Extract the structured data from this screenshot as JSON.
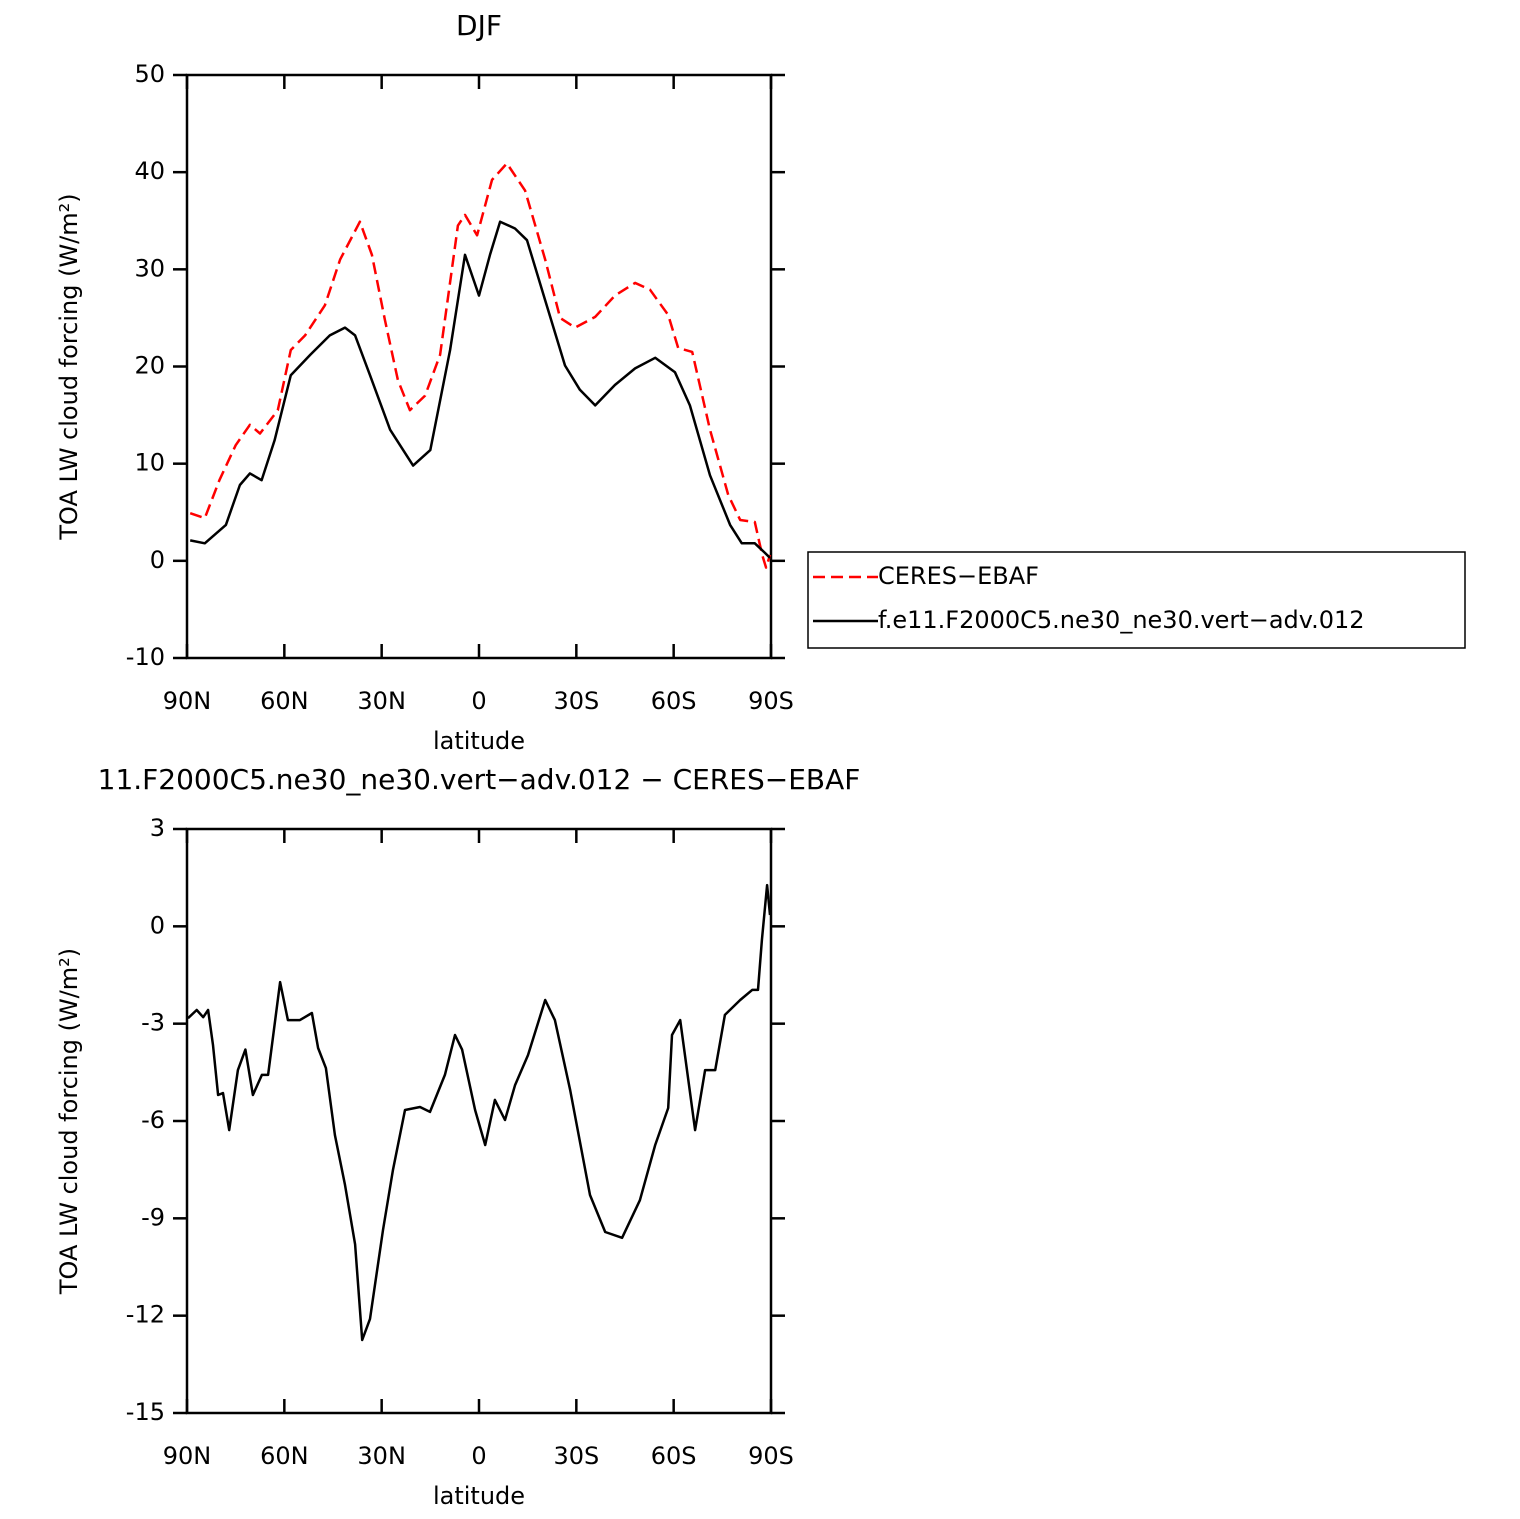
{
  "chart_data": [
    {
      "type": "line",
      "title": "DJF",
      "x_label": "latitude",
      "y_label": "TOA LW cloud forcing (W/m²)",
      "xlim": [
        90,
        -90
      ],
      "ylim": [
        -10,
        50
      ],
      "xticks": [
        {
          "value": 90,
          "label": "90N"
        },
        {
          "value": 60,
          "label": "60N"
        },
        {
          "value": 30,
          "label": "30N"
        },
        0,
        {
          "value": -30,
          "label": "30S"
        },
        {
          "value": -60,
          "label": "60S"
        },
        {
          "value": -90,
          "label": "90S"
        }
      ],
      "yticks": [
        -10,
        0,
        10,
        20,
        30,
        40,
        50
      ],
      "legend": "right",
      "series": [
        {
          "name": "CERES−EBAF",
          "color": "#ff0000",
          "dash": true,
          "x": [
            89,
            84.5,
            80,
            75,
            70.6,
            67.5,
            62,
            58,
            53.6,
            47.5,
            42.8,
            36.7,
            33,
            29,
            25,
            21.3,
            16.6,
            12,
            6.5,
            4.3,
            0.6,
            -4,
            -8.6,
            -14.2,
            -20.4,
            -25,
            -29.6,
            -35.8,
            -41.9,
            -48.1,
            -52.7,
            -58.3,
            -61.4,
            -65.7,
            -71.2,
            -76.8,
            -80.5,
            -85,
            -87.3,
            -88.5,
            -89.7
          ],
          "values": [
            4.9,
            4.4,
            8.3,
            11.9,
            14,
            13.1,
            15.5,
            21.7,
            23.2,
            26.3,
            31,
            34.9,
            31.5,
            24.8,
            18.6,
            15.5,
            17,
            21.2,
            34.5,
            35.6,
            33.5,
            39.2,
            40.9,
            38.1,
            31,
            25,
            24,
            25.1,
            27.3,
            28.6,
            27.9,
            25.3,
            21.9,
            21.5,
            13.5,
            6.8,
            4.2,
            4,
            0.6,
            -0.7,
            0.6
          ]
        },
        {
          "name": "f.e11.F2000C5.ne30_ne30.vert−adv.012",
          "color": "#000000",
          "dash": false,
          "x": [
            89,
            84.5,
            78,
            73.7,
            70.6,
            67,
            63,
            58,
            52,
            46,
            41.3,
            38.2,
            33.6,
            27.4,
            20.3,
            15,
            8.9,
            4.3,
            0,
            -3.4,
            -6.5,
            -11.1,
            -14.8,
            -20.4,
            -26.5,
            -31.1,
            -35.8,
            -41.9,
            -48.1,
            -54.3,
            -60.4,
            -65,
            -71.2,
            -77.4,
            -81,
            -85,
            -88.2,
            -89.7
          ],
          "values": [
            2.1,
            1.8,
            3.7,
            7.8,
            9,
            8.3,
            12.4,
            19.1,
            21.2,
            23.2,
            24,
            23.2,
            19.1,
            13.5,
            9.8,
            11.4,
            21.7,
            31.5,
            27.3,
            31.5,
            34.9,
            34.2,
            33,
            26.8,
            20.1,
            17.6,
            16,
            18.1,
            19.8,
            20.9,
            19.4,
            16,
            8.8,
            3.7,
            1.8,
            1.8,
            0.8,
            0.3
          ]
        }
      ]
    },
    {
      "type": "line",
      "title": "11.F2000C5.ne30_ne30.vert−adv.012 − CERES−EBAF",
      "x_label": "latitude",
      "y_label": "TOA LW cloud forcing (W/m²)",
      "xlim": [
        90,
        -90
      ],
      "ylim": [
        -15,
        3
      ],
      "xticks": [
        {
          "value": 90,
          "label": "90N"
        },
        {
          "value": 60,
          "label": "60N"
        },
        {
          "value": 30,
          "label": "30N"
        },
        0,
        {
          "value": -30,
          "label": "30S"
        },
        {
          "value": -60,
          "label": "60S"
        },
        {
          "value": -90,
          "label": "90S"
        }
      ],
      "yticks": [
        -15,
        -12,
        -9,
        -6,
        -3,
        0,
        3
      ],
      "color": "#000000",
      "x": [
        89.7,
        87,
        85,
        83.5,
        82,
        80.4,
        78.9,
        77,
        74.3,
        72,
        69.7,
        66.9,
        65,
        61.3,
        58.9,
        55.2,
        51.5,
        49.6,
        47.2,
        44.4,
        41.3,
        38.2,
        36,
        33.6,
        29.6,
        26.5,
        22.8,
        18.2,
        15.1,
        10.5,
        7.4,
        5.2,
        1.2,
        -1.9,
        -4.9,
        -8,
        -11.1,
        -15.1,
        -20.4,
        -23.4,
        -28.1,
        -34.2,
        -38.9,
        -44.1,
        -49.6,
        -54.3,
        -58.3,
        -59.5,
        -62,
        -66.6,
        -69.7,
        -72.8,
        -75.8,
        -80.5,
        -84.2,
        -86,
        -87.2,
        -88.8,
        -89.7
      ],
      "values": [
        -2.83,
        -2.58,
        -2.8,
        -2.58,
        -3.66,
        -5.2,
        -5.14,
        -6.28,
        -4.43,
        -3.8,
        -5.2,
        -4.58,
        -4.58,
        -1.72,
        -2.89,
        -2.89,
        -2.67,
        -3.75,
        -4.37,
        -6.43,
        -7.97,
        -9.8,
        -12.75,
        -12.1,
        -9.36,
        -7.5,
        -5.66,
        -5.57,
        -5.72,
        -4.58,
        -3.35,
        -3.8,
        -5.66,
        -6.74,
        -5.35,
        -5.97,
        -4.9,
        -3.97,
        -2.27,
        -2.89,
        -5.05,
        -8.28,
        -9.42,
        -9.6,
        -8.44,
        -6.74,
        -5.6,
        -3.35,
        -2.89,
        -6.28,
        -4.43,
        -4.43,
        -2.73,
        -2.27,
        -1.96,
        -1.96,
        -0.42,
        1.27,
        0.35
      ]
    }
  ]
}
